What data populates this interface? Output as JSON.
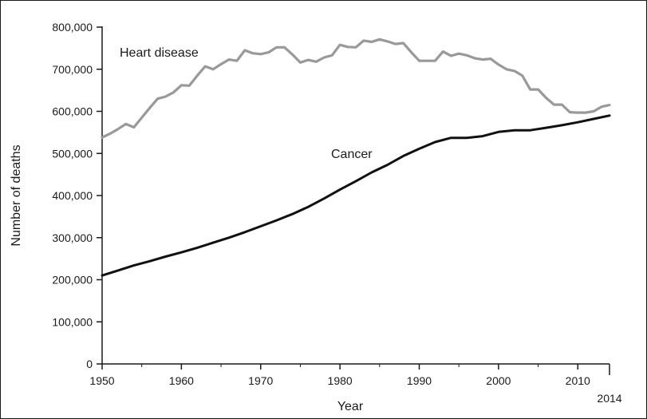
{
  "chart_data": {
    "type": "line",
    "title": "",
    "xlabel": "Year",
    "ylabel": "Number of deaths",
    "xlim": [
      1950,
      2014
    ],
    "ylim": [
      0,
      800000
    ],
    "x_ticks": [
      1950,
      1960,
      1970,
      1980,
      1990,
      2000,
      2010,
      2014
    ],
    "x_tick_labels": [
      "1950",
      "1960",
      "1970",
      "1980",
      "1990",
      "2000",
      "2010",
      "2014"
    ],
    "y_ticks": [
      0,
      100000,
      200000,
      300000,
      400000,
      500000,
      600000,
      700000,
      800000
    ],
    "y_tick_labels": [
      "0",
      "100,000",
      "200,000",
      "300,000",
      "400,000",
      "500,000",
      "600,000",
      "700,000",
      "800,000"
    ],
    "grid": false,
    "legend": "none (series labeled directly on plot)",
    "colors": {
      "axis": "#1a1a1a",
      "heart_disease": "#999999",
      "cancer": "#111111"
    },
    "series": [
      {
        "name": "Heart disease",
        "color": "#999999",
        "x": [
          1950,
          1951,
          1952,
          1953,
          1954,
          1955,
          1956,
          1957,
          1958,
          1959,
          1960,
          1961,
          1962,
          1963,
          1964,
          1965,
          1966,
          1967,
          1968,
          1969,
          1970,
          1971,
          1972,
          1973,
          1974,
          1975,
          1976,
          1977,
          1978,
          1979,
          1980,
          1981,
          1982,
          1983,
          1984,
          1985,
          1986,
          1987,
          1988,
          1989,
          1990,
          1991,
          1992,
          1993,
          1994,
          1995,
          1996,
          1997,
          1998,
          1999,
          2000,
          2001,
          2002,
          2003,
          2004,
          2005,
          2006,
          2007,
          2008,
          2009,
          2010,
          2011,
          2012,
          2013,
          2014
        ],
        "values": [
          538000,
          547000,
          558000,
          570000,
          562000,
          585000,
          608000,
          630000,
          635000,
          645000,
          662000,
          661000,
          685000,
          707000,
          700000,
          712000,
          723000,
          720000,
          745000,
          738000,
          736000,
          740000,
          752000,
          752000,
          735000,
          716000,
          722000,
          718000,
          728000,
          733000,
          758000,
          753000,
          752000,
          768000,
          765000,
          771000,
          766000,
          760000,
          762000,
          740000,
          720000,
          720000,
          720000,
          742000,
          732000,
          737000,
          733000,
          726000,
          723000,
          725000,
          711000,
          700000,
          696000,
          685000,
          652000,
          652000,
          632000,
          616000,
          616000,
          598000,
          597000,
          597000,
          600000,
          611000,
          615000
        ]
      },
      {
        "name": "Cancer",
        "color": "#111111",
        "x": [
          1950,
          1952,
          1954,
          1956,
          1958,
          1960,
          1962,
          1964,
          1966,
          1968,
          1970,
          1972,
          1974,
          1976,
          1978,
          1980,
          1982,
          1984,
          1986,
          1988,
          1990,
          1992,
          1994,
          1996,
          1998,
          2000,
          2002,
          2004,
          2006,
          2008,
          2010,
          2012,
          2014
        ],
        "values": [
          210000,
          222000,
          234000,
          244000,
          255000,
          265000,
          276000,
          288000,
          300000,
          313000,
          327000,
          341000,
          356000,
          373000,
          393000,
          414000,
          434000,
          455000,
          473000,
          494000,
          511000,
          527000,
          537000,
          537000,
          541000,
          551000,
          555000,
          555000,
          561000,
          567000,
          574000,
          582000,
          590000
        ]
      }
    ],
    "annotations": [
      {
        "text": "Heart disease",
        "series": "Heart disease"
      },
      {
        "text": "Cancer",
        "series": "Cancer"
      }
    ]
  }
}
